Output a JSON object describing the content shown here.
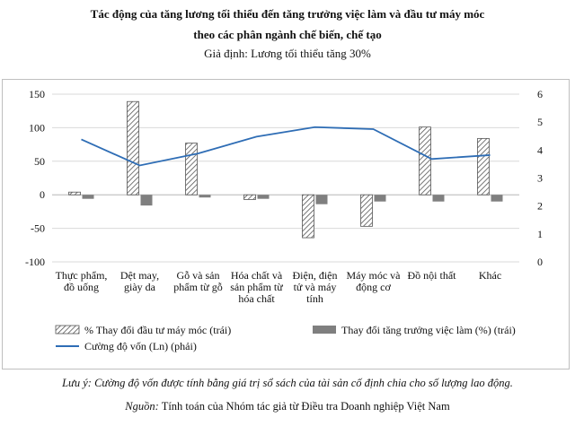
{
  "title": {
    "line1": "Tác động của tăng lương tối thiểu đến tăng trưởng việc làm và đầu tư máy móc",
    "line2": "theo các phân ngành chế biến, chế tạo",
    "subtitle": "Giả định: Lương tối thiểu tăng 30%"
  },
  "chart_data": {
    "type": "bar",
    "categories": [
      [
        "Thực phẩm,",
        "đồ uống"
      ],
      [
        "Dệt may,",
        "giày da"
      ],
      [
        "Gỗ và sản",
        "phẩm từ gỗ"
      ],
      [
        "Hóa chất và",
        "sản phẩm từ",
        "hóa chất"
      ],
      [
        "Điện, điện",
        "tử và máy",
        "tính"
      ],
      [
        "Máy móc và",
        "động cơ"
      ],
      [
        "Đồ nội thất"
      ],
      [
        "Khác"
      ]
    ],
    "series": [
      {
        "name": "% Thay đổi đầu tư máy móc (trái)",
        "type": "bar",
        "axis": "left",
        "pattern": "hatch",
        "values": [
          4,
          139,
          77,
          -7,
          -64,
          -47,
          101,
          84
        ]
      },
      {
        "name": "Thay đổi tăng trưởng việc làm (%) (trái)",
        "type": "bar",
        "axis": "left",
        "color": "#7f7f7f",
        "values": [
          -6,
          -16,
          -4,
          -6,
          -14,
          -10,
          -10,
          -10
        ]
      },
      {
        "name": "Cường độ vốn (Ln) (phải)",
        "type": "line",
        "axis": "right",
        "color": "#2e6db5",
        "values": [
          4.38,
          3.45,
          3.88,
          4.48,
          4.82,
          4.75,
          3.68,
          3.82
        ]
      }
    ],
    "left_axis": {
      "ylim": [
        -100,
        150
      ],
      "ticks": [
        "150",
        "100",
        "50",
        "0",
        "-50",
        "-100"
      ]
    },
    "right_axis": {
      "ylim": [
        0,
        6
      ],
      "ticks": [
        "6",
        "5",
        "4",
        "3",
        "2",
        "1",
        "0"
      ]
    },
    "legend": {
      "position": "bottom",
      "items": [
        "% Thay đổi đầu tư máy móc (trái)",
        "Thay đổi tăng trưởng việc làm (%) (trái)",
        "Cường độ vốn (Ln) (phải)"
      ]
    }
  },
  "notes": {
    "note_label": "Lưu ý:",
    "note_text": "Cường độ vốn được tính bằng giá trị sổ sách của tài sản cố định chia cho số lượng lao động.",
    "source_label": "Nguồn:",
    "source_text": "Tính toán của Nhóm tác giả từ Điều tra Doanh nghiệp Việt Nam"
  }
}
